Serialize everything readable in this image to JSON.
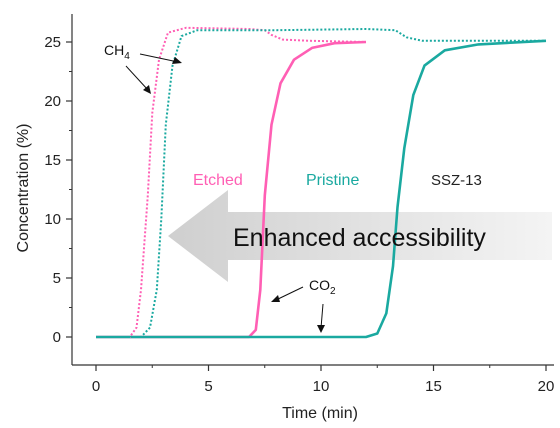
{
  "chart_data": {
    "type": "line",
    "xlabel": "Time (min)",
    "ylabel": "Concentration (%)",
    "xlim": [
      0,
      20
    ],
    "ylim": [
      0,
      26.5
    ],
    "xticks": [
      0,
      5,
      10,
      15,
      20
    ],
    "yticks": [
      0,
      5,
      10,
      15,
      20,
      25
    ],
    "grid": false,
    "series": [
      {
        "name": "Etched",
        "gas": "CO2",
        "style": "solid",
        "color": "#ff5fb4",
        "points": [
          [
            0,
            0
          ],
          [
            6.8,
            0
          ],
          [
            7.1,
            0.6
          ],
          [
            7.3,
            4
          ],
          [
            7.5,
            12
          ],
          [
            7.8,
            18
          ],
          [
            8.2,
            21.5
          ],
          [
            8.8,
            23.5
          ],
          [
            9.6,
            24.5
          ],
          [
            10.6,
            24.9
          ],
          [
            12,
            25
          ]
        ]
      },
      {
        "name": "Pristine",
        "gas": "CO2",
        "style": "solid",
        "color": "#1aa9a0",
        "points": [
          [
            0,
            0
          ],
          [
            7.0,
            0
          ],
          [
            12,
            0
          ],
          [
            12.5,
            0.3
          ],
          [
            12.9,
            2
          ],
          [
            13.2,
            6
          ],
          [
            13.4,
            11
          ],
          [
            13.7,
            16
          ],
          [
            14.1,
            20.5
          ],
          [
            14.6,
            23
          ],
          [
            15.5,
            24.3
          ],
          [
            17,
            24.8
          ],
          [
            20,
            25.1
          ]
        ]
      },
      {
        "name": "Etched",
        "gas": "CH4",
        "style": "dotted",
        "color": "#ff5fb4",
        "points": [
          [
            0,
            0
          ],
          [
            1.5,
            0
          ],
          [
            1.8,
            0.8
          ],
          [
            2.0,
            4
          ],
          [
            2.3,
            12
          ],
          [
            2.5,
            19
          ],
          [
            2.8,
            23.5
          ],
          [
            3.2,
            25.8
          ],
          [
            4.0,
            26.2
          ],
          [
            6.8,
            26.1
          ],
          [
            7.5,
            26
          ],
          [
            7.8,
            25.6
          ],
          [
            8.3,
            25.2
          ],
          [
            9.5,
            25.1
          ],
          [
            12,
            25
          ]
        ]
      },
      {
        "name": "Pristine",
        "gas": "CH4",
        "style": "dotted",
        "color": "#1aa9a0",
        "points": [
          [
            0,
            0
          ],
          [
            2.0,
            0
          ],
          [
            2.4,
            0.8
          ],
          [
            2.7,
            4
          ],
          [
            2.9,
            10
          ],
          [
            3.1,
            18
          ],
          [
            3.4,
            23
          ],
          [
            3.8,
            25.5
          ],
          [
            4.5,
            26
          ],
          [
            8,
            26
          ],
          [
            12,
            26.1
          ],
          [
            13.3,
            26
          ],
          [
            13.8,
            25.4
          ],
          [
            14.5,
            25.1
          ],
          [
            20,
            25.1
          ]
        ]
      }
    ],
    "legend_labels": {
      "etched": "Etched",
      "pristine": "Pristine",
      "ssz": "SSZ-13"
    },
    "annotations": {
      "ch4": {
        "chem": "CH",
        "sub": "4"
      },
      "co2": {
        "chem": "CO",
        "sub": "2"
      },
      "arrow_text": "Enhanced accessibility"
    }
  }
}
